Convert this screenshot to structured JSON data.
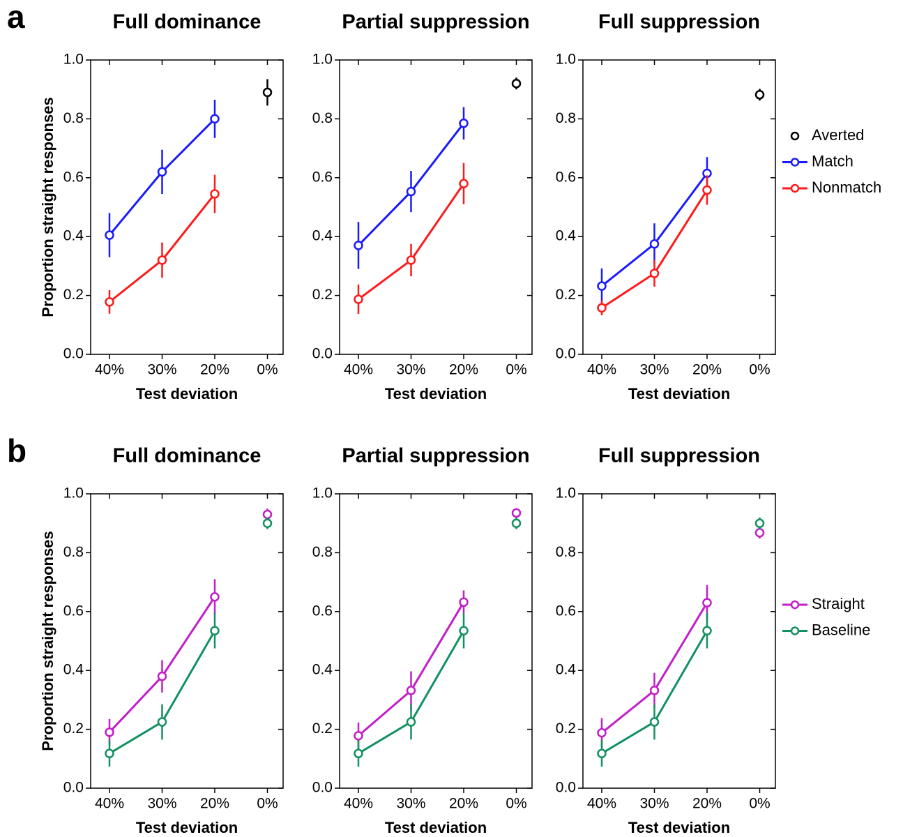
{
  "chart_data": [
    {
      "type": "line",
      "panel": "a",
      "title": "Full dominance",
      "xlabel": "Test deviation",
      "ylabel": "Proportion straight responses",
      "categories": [
        "40%",
        "30%",
        "20%",
        "0%"
      ],
      "ylim": [
        0,
        1
      ],
      "yticks": [
        {
          "value": 0,
          "label": "0.0"
        },
        0.2,
        0.4,
        0.6,
        0.8,
        {
          "value": 1,
          "label": "1.0"
        }
      ],
      "connect_last": false,
      "series": [
        {
          "color": "#000000",
          "values": [
            null,
            null,
            null,
            0.89
          ],
          "errors": [
            null,
            null,
            null,
            0.045
          ]
        },
        {
          "color": "#1a1aff",
          "values": [
            0.405,
            0.62,
            0.8,
            null
          ],
          "errors": [
            0.075,
            0.075,
            0.065,
            null
          ]
        },
        {
          "color": "#ff1a1a",
          "values": [
            0.178,
            0.32,
            0.545,
            null
          ],
          "errors": [
            0.04,
            0.06,
            0.065,
            null
          ]
        }
      ]
    },
    {
      "type": "line",
      "title": "Partial suppression",
      "xlabel": "Test deviation",
      "categories": [
        "40%",
        "30%",
        "20%",
        "0%"
      ],
      "ylim": [
        0,
        1
      ],
      "yticks": [
        {
          "value": 0,
          "label": "0.0"
        },
        0.2,
        0.4,
        0.6,
        0.8,
        {
          "value": 1,
          "label": "1.0"
        }
      ],
      "connect_last": false,
      "series": [
        {
          "color": "#000000",
          "values": [
            null,
            null,
            null,
            0.92
          ],
          "errors": [
            null,
            null,
            null,
            0.02
          ]
        },
        {
          "color": "#1a1aff",
          "values": [
            0.37,
            0.553,
            0.785,
            null
          ],
          "errors": [
            0.08,
            0.07,
            0.055,
            null
          ]
        },
        {
          "color": "#ff1a1a",
          "values": [
            0.187,
            0.32,
            0.58,
            null
          ],
          "errors": [
            0.05,
            0.055,
            0.07,
            null
          ]
        }
      ]
    },
    {
      "type": "line",
      "title": "Full suppression",
      "xlabel": "Test deviation",
      "categories": [
        "40%",
        "30%",
        "20%",
        "0%"
      ],
      "ylim": [
        0,
        1
      ],
      "yticks": [
        {
          "value": 0,
          "label": "0.0"
        },
        0.2,
        0.4,
        0.6,
        0.8,
        {
          "value": 1,
          "label": "1.0"
        }
      ],
      "connect_last": false,
      "series": [
        {
          "name": "Averted",
          "color": "#000000",
          "values": [
            null,
            null,
            null,
            0.882
          ],
          "errors": [
            null,
            null,
            null,
            0.02
          ]
        },
        {
          "name": "Match",
          "color": "#1a1aff",
          "values": [
            0.232,
            0.375,
            0.615,
            null
          ],
          "errors": [
            0.06,
            0.07,
            0.055,
            null
          ]
        },
        {
          "name": "Nonmatch",
          "color": "#ff1a1a",
          "values": [
            0.158,
            0.275,
            0.558,
            null
          ],
          "errors": [
            0.025,
            0.045,
            0.05,
            null
          ]
        }
      ]
    },
    {
      "type": "line",
      "panel": "b",
      "title": "Full dominance",
      "xlabel": "Test deviation",
      "ylabel": "Proportion straight responses",
      "categories": [
        "40%",
        "30%",
        "20%",
        "0%"
      ],
      "ylim": [
        0,
        1
      ],
      "yticks": [
        {
          "value": 0,
          "label": "0.0"
        },
        0.2,
        0.4,
        0.6,
        0.8,
        {
          "value": 1,
          "label": "1.0"
        }
      ],
      "connect_last": false,
      "series": [
        {
          "color": "#c21ec9",
          "values": [
            0.19,
            0.38,
            0.65,
            0.93
          ],
          "errors": [
            0.045,
            0.055,
            0.06,
            0.02
          ]
        },
        {
          "color": "#129160",
          "values": [
            0.118,
            0.225,
            0.535,
            0.9
          ],
          "errors": [
            0.045,
            0.06,
            0.06,
            0.02
          ]
        }
      ]
    },
    {
      "type": "line",
      "title": "Partial suppression",
      "xlabel": "Test deviation",
      "categories": [
        "40%",
        "30%",
        "20%",
        "0%"
      ],
      "ylim": [
        0,
        1
      ],
      "yticks": [
        {
          "value": 0,
          "label": "0.0"
        },
        0.2,
        0.4,
        0.6,
        0.8,
        {
          "value": 1,
          "label": "1.0"
        }
      ],
      "connect_last": false,
      "series": [
        {
          "color": "#c21ec9",
          "values": [
            0.178,
            0.332,
            0.632,
            0.935
          ],
          "errors": [
            0.045,
            0.065,
            0.04,
            0.015
          ]
        },
        {
          "color": "#129160",
          "values": [
            0.118,
            0.225,
            0.535,
            0.9
          ],
          "errors": [
            0.045,
            0.06,
            0.06,
            0.02
          ]
        }
      ]
    },
    {
      "type": "line",
      "title": "Full suppression",
      "xlabel": "Test deviation",
      "categories": [
        "40%",
        "30%",
        "20%",
        "0%"
      ],
      "ylim": [
        0,
        1
      ],
      "yticks": [
        {
          "value": 0,
          "label": "0.0"
        },
        0.2,
        0.4,
        0.6,
        0.8,
        {
          "value": 1,
          "label": "1.0"
        }
      ],
      "connect_last": false,
      "series": [
        {
          "name": "Straight",
          "color": "#c21ec9",
          "values": [
            0.188,
            0.332,
            0.63,
            0.868
          ],
          "errors": [
            0.05,
            0.06,
            0.06,
            0.02
          ]
        },
        {
          "name": "Baseline",
          "color": "#129160",
          "values": [
            0.118,
            0.225,
            0.535,
            0.9
          ],
          "errors": [
            0.045,
            0.06,
            0.06,
            0.02
          ]
        }
      ]
    }
  ]
}
